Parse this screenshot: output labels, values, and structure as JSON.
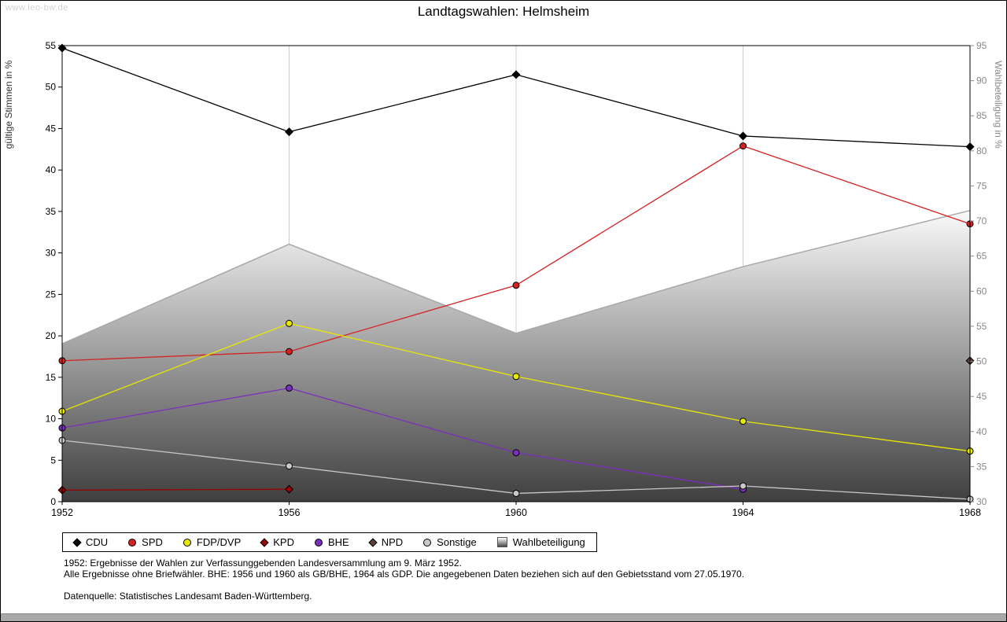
{
  "watermark": "www.leo-bw.de",
  "title": "Landtagswahlen:  Helmsheim",
  "notes": {
    "line1": "1952: Ergebnisse der Wahlen zur Verfassunggebenden Landesversammlung am 9. März 1952.",
    "line2": "Alle Ergebnisse ohne Briefwähler. BHE: 1956 und 1960 als GB/BHE, 1964 als GDP. Die angegebenen Daten beziehen sich auf den Gebietsstand vom 27.05.1970.",
    "source": "Datenquelle: Statistisches Landesamt Baden-Württemberg."
  },
  "chart_data": {
    "type": "line",
    "title": "Landtagswahlen: Helmsheim",
    "x": [
      1952,
      1956,
      1960,
      1964,
      1968
    ],
    "left_axis": {
      "label": "gültige Stimmen in %",
      "min": 0,
      "max": 55,
      "tick_step": 5
    },
    "right_axis": {
      "label": "Wahlbeteiligung in %",
      "min": 30,
      "max": 95,
      "tick_step": 5
    },
    "grid": "vertical-only",
    "legend_position": "bottom",
    "series": [
      {
        "name": "CDU",
        "color": "#000000",
        "marker": "diamond",
        "axis": "left",
        "values": [
          54.7,
          44.6,
          51.5,
          44.1,
          42.8
        ]
      },
      {
        "name": "SPD",
        "color": "#d42222",
        "marker": "circle",
        "axis": "left",
        "values": [
          17.0,
          18.1,
          26.1,
          42.9,
          33.5
        ]
      },
      {
        "name": "FDP/DVP",
        "color": "#e8e800",
        "marker": "circle",
        "axis": "left",
        "values": [
          10.9,
          21.5,
          15.1,
          9.7,
          6.1
        ]
      },
      {
        "name": "KPD",
        "color": "#990000",
        "marker": "diamond",
        "axis": "left",
        "values": [
          1.4,
          1.5,
          null,
          null,
          null
        ]
      },
      {
        "name": "BHE",
        "color": "#7b2fbe",
        "marker": "circle",
        "axis": "left",
        "values": [
          8.9,
          13.7,
          5.9,
          1.5,
          null
        ]
      },
      {
        "name": "NPD",
        "color": "#5a4036",
        "marker": "diamond",
        "axis": "left",
        "values": [
          null,
          null,
          null,
          null,
          17.0
        ]
      },
      {
        "name": "Sonstige",
        "color": "#c8c8c8",
        "marker": "circle",
        "axis": "left",
        "values": [
          7.4,
          4.3,
          1.0,
          1.9,
          0.3
        ]
      }
    ],
    "area_series": {
      "name": "Wahlbeteiligung",
      "axis": "right",
      "values": [
        52.5,
        66.7,
        54.0,
        63.5,
        71.5
      ],
      "fill_top": "#fafafa",
      "fill_bottom": "#3f3f3f",
      "line_color": "#a8a8a8"
    }
  }
}
